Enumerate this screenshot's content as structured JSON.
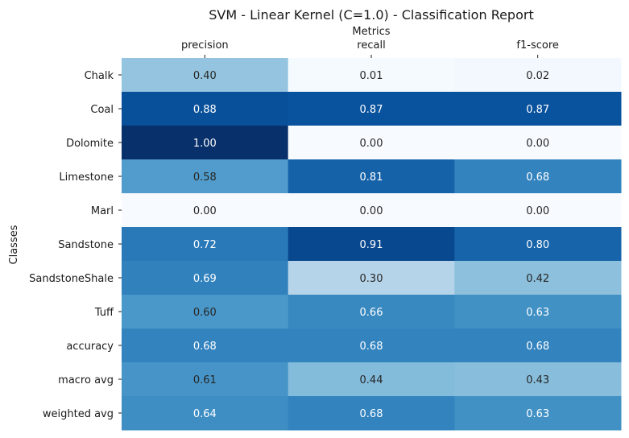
{
  "chart_data": {
    "type": "heatmap",
    "title": "SVM - Linear Kernel (C=1.0) - Classification Report",
    "xlabel": "Metrics",
    "ylabel": "Classes",
    "columns": [
      "precision",
      "recall",
      "f1-score"
    ],
    "rows": [
      "Chalk",
      "Coal",
      "Dolomite",
      "Limestone",
      "Marl",
      "Sandstone",
      "SandstoneShale",
      "Tuff",
      "accuracy",
      "macro avg",
      "weighted avg"
    ],
    "values": [
      [
        0.4,
        0.01,
        0.02
      ],
      [
        0.88,
        0.87,
        0.87
      ],
      [
        1.0,
        0.0,
        0.0
      ],
      [
        0.58,
        0.81,
        0.68
      ],
      [
        0.0,
        0.0,
        0.0
      ],
      [
        0.72,
        0.91,
        0.8
      ],
      [
        0.69,
        0.3,
        0.42
      ],
      [
        0.6,
        0.66,
        0.63
      ],
      [
        0.68,
        0.68,
        0.68
      ],
      [
        0.61,
        0.44,
        0.43
      ],
      [
        0.64,
        0.68,
        0.63
      ]
    ],
    "value_format": "2 decimals",
    "colormap": "Blues",
    "vmin": 0,
    "vmax": 1,
    "x_axis_position": "top",
    "colorbar": false
  }
}
